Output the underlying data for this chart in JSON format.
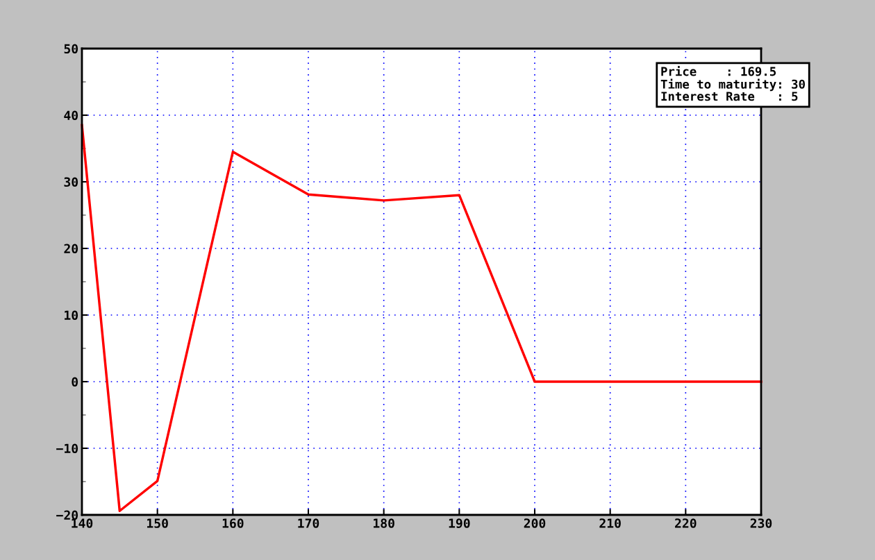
{
  "chart_data": {
    "type": "line",
    "x": [
      140,
      145,
      150,
      160,
      170,
      180,
      190,
      200,
      210,
      220,
      230
    ],
    "series": [
      {
        "color": "#ff0000",
        "values": [
          38.5,
          -19.4,
          -14.9,
          34.5,
          28.1,
          27.2,
          28,
          0,
          0,
          0,
          0
        ]
      }
    ],
    "xlim": [
      140,
      230
    ],
    "xticks": [
      140,
      150,
      160,
      170,
      180,
      190,
      200,
      210,
      220,
      230
    ],
    "ylim": [
      -20,
      50
    ],
    "yticks": [
      {
        "value": -20,
        "label": "−20"
      },
      {
        "value": -10,
        "label": "−10"
      },
      0,
      10,
      20,
      30,
      40,
      50
    ],
    "grid": true,
    "annotations": [
      "Price    : 169.5",
      "Time to maturity: 30",
      "Interest Rate   : 5"
    ]
  }
}
